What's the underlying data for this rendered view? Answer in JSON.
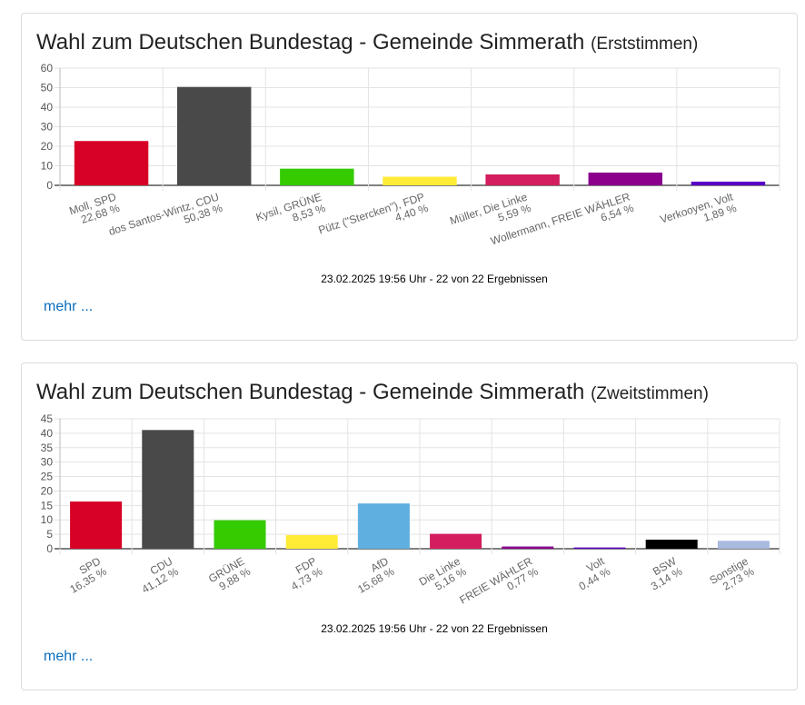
{
  "cards": [
    {
      "title": "Wahl zum Deutschen Bundestag - Gemeinde Simmerath",
      "subtitle": "(Erststimmen)",
      "more_label": "mehr ...",
      "chart_data": {
        "type": "bar",
        "categories": [
          "Moll, SPD",
          "dos Santos-Wintz, CDU",
          "Kysil, GRÜNE",
          "Pütz (\"Stercken\"), FDP",
          "Müller, Die Linke",
          "Wollermann, FREIE WÄHLER",
          "Verkooyen, Volt"
        ],
        "value_labels": [
          "22,68 %",
          "50,38 %",
          "8,53 %",
          "4,40 %",
          "5,59 %",
          "6,54 %",
          "1,89 %"
        ],
        "values": [
          22.68,
          50.38,
          8.53,
          4.4,
          5.59,
          6.54,
          1.89
        ],
        "colors": [
          "#d70027",
          "#494949",
          "#34cb00",
          "#ffec36",
          "#d21e5f",
          "#8a008d",
          "#5b00c6"
        ],
        "ylim": [
          0,
          60
        ],
        "yticks": [
          0,
          10,
          20,
          30,
          40,
          50,
          60
        ],
        "grid": true,
        "footnote": "23.02.2025 19:56 Uhr - 22 von 22 Ergebnissen"
      }
    },
    {
      "title": "Wahl zum Deutschen Bundestag - Gemeinde Simmerath",
      "subtitle": "(Zweitstimmen)",
      "more_label": "mehr ...",
      "chart_data": {
        "type": "bar",
        "categories": [
          "SPD",
          "CDU",
          "GRÜNE",
          "FDP",
          "AfD",
          "Die Linke",
          "FREIE WÄHLER",
          "Volt",
          "BSW",
          "Sonstige"
        ],
        "value_labels": [
          "16,35 %",
          "41,12 %",
          "9,88 %",
          "4,73 %",
          "15,68 %",
          "5,16 %",
          "0,77 %",
          "0,44 %",
          "3,14 %",
          "2,73 %"
        ],
        "values": [
          16.35,
          41.12,
          9.88,
          4.73,
          15.68,
          5.16,
          0.77,
          0.44,
          3.14,
          2.73
        ],
        "colors": [
          "#d70027",
          "#494949",
          "#34cb00",
          "#ffec36",
          "#5fb0e0",
          "#d21e5f",
          "#8a008d",
          "#5b00c6",
          "#000000",
          "#a9badf"
        ],
        "ylim": [
          0,
          45
        ],
        "yticks": [
          0,
          5,
          10,
          15,
          20,
          25,
          30,
          35,
          40,
          45
        ],
        "grid": true,
        "footnote": "23.02.2025 19:56 Uhr - 22 von 22 Ergebnissen"
      }
    }
  ]
}
